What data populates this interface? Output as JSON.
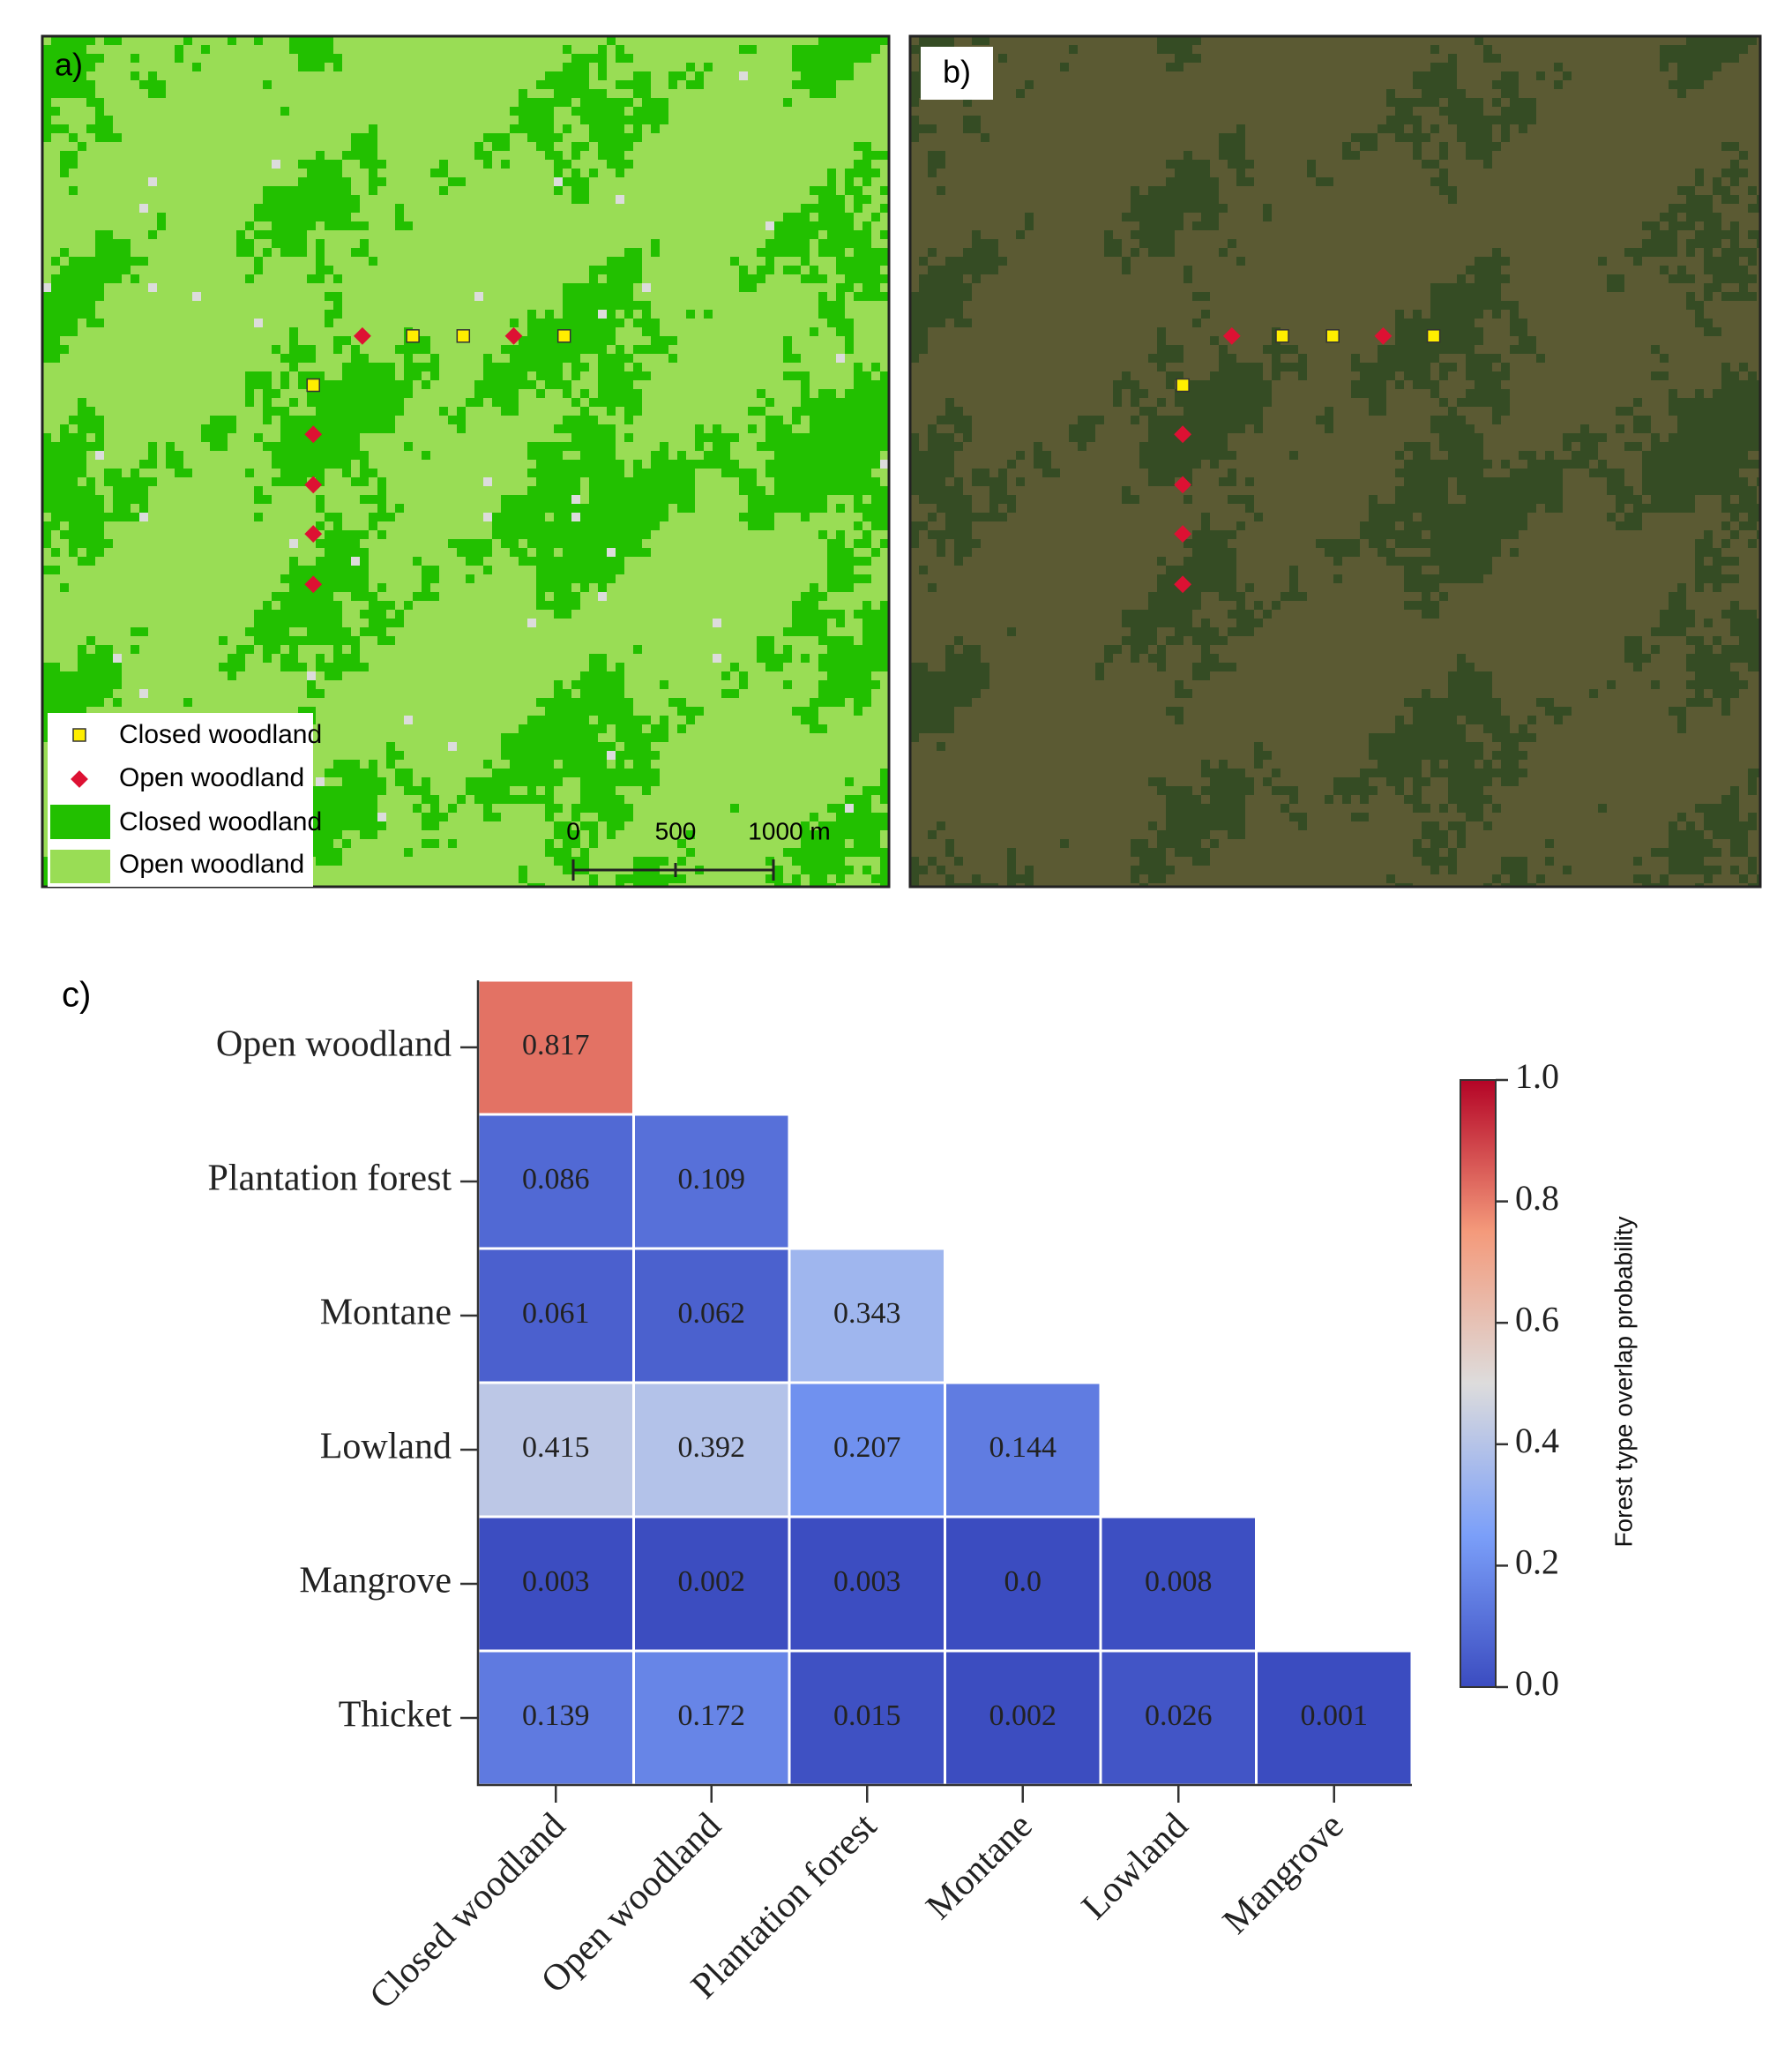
{
  "panel_a": {
    "label": "a)",
    "legend": [
      "Closed woodland",
      "Open woodland",
      "Closed woodland",
      "Open woodland"
    ],
    "scale_bar": [
      "0",
      "500",
      "1000 m"
    ]
  },
  "panel_b": {
    "label": "b)"
  },
  "chart_data": {
    "type": "heatmap",
    "label": "c)",
    "rows": [
      "Open woodland",
      "Plantation forest",
      "Montane",
      "Lowland",
      "Mangrove",
      "Thicket"
    ],
    "columns": [
      "Closed woodland",
      "Open woodland",
      "Plantation forest",
      "Montane",
      "Lowland",
      "Mangrove"
    ],
    "values": [
      [
        0.817
      ],
      [
        0.086,
        0.109
      ],
      [
        0.061,
        0.062,
        0.343
      ],
      [
        0.415,
        0.392,
        0.207,
        0.144
      ],
      [
        0.003,
        0.002,
        0.003,
        0,
        0.008
      ],
      [
        0.139,
        0.172,
        0.015,
        0.002,
        0.026,
        0.001
      ]
    ],
    "value_labels": [
      [
        "0.817"
      ],
      [
        "0.086",
        "0.109"
      ],
      [
        "0.061",
        "0.062",
        "0.343"
      ],
      [
        "0.415",
        "0.392",
        "0.207",
        "0.144"
      ],
      [
        "0.003",
        "0.002",
        "0.003",
        "0.0",
        "0.008"
      ],
      [
        "0.139",
        "0.172",
        "0.015",
        "0.002",
        "0.026",
        "0.001"
      ]
    ],
    "colormap": [
      "#3b4cc0",
      "#7b9ff9",
      "#dddcdc",
      "#f49a7b",
      "#b40426"
    ],
    "colorbar_label": "Forest type overlap probability",
    "colorbar_lim": [
      0,
      1
    ],
    "colorbar_ticks": [
      {
        "value": 0,
        "label": "0.0"
      },
      0.2,
      0.4,
      0.6,
      0.8,
      {
        "value": 1,
        "label": "1.0"
      }
    ]
  }
}
